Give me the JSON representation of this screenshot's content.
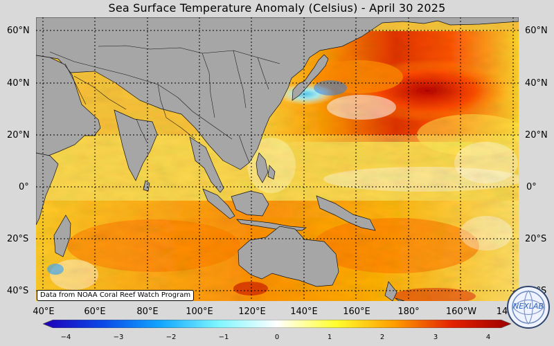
{
  "map": {
    "title": "Sea Surface Temperature Anomaly (Celsius) - April 30 2025",
    "lat_labels": [
      "60°N",
      "40°N",
      "20°N",
      "0°",
      "20°S",
      "40°S"
    ],
    "lon_labels": [
      "40°E",
      "60°E",
      "80°E",
      "100°E",
      "120°E",
      "140°E",
      "160°E",
      "180°",
      "160°W",
      "14"
    ],
    "credit": "Data from NOAA Coral Reef Watch Program",
    "logo_text": "NEXLAB"
  },
  "legend": {
    "ticks": [
      "−4",
      "−3",
      "−2",
      "−1",
      "0",
      "1",
      "2",
      "3",
      "4"
    ],
    "colors": [
      "#1f00b8",
      "#0b46e6",
      "#10a5ff",
      "#7ff6ff",
      "#ffffff",
      "#ffff2e",
      "#ff9d00",
      "#e22000",
      "#9d0000"
    ]
  },
  "style": {
    "land_color": "#a6a6a6",
    "background_color": "#d9d9d9",
    "grid_color": "#000000"
  }
}
